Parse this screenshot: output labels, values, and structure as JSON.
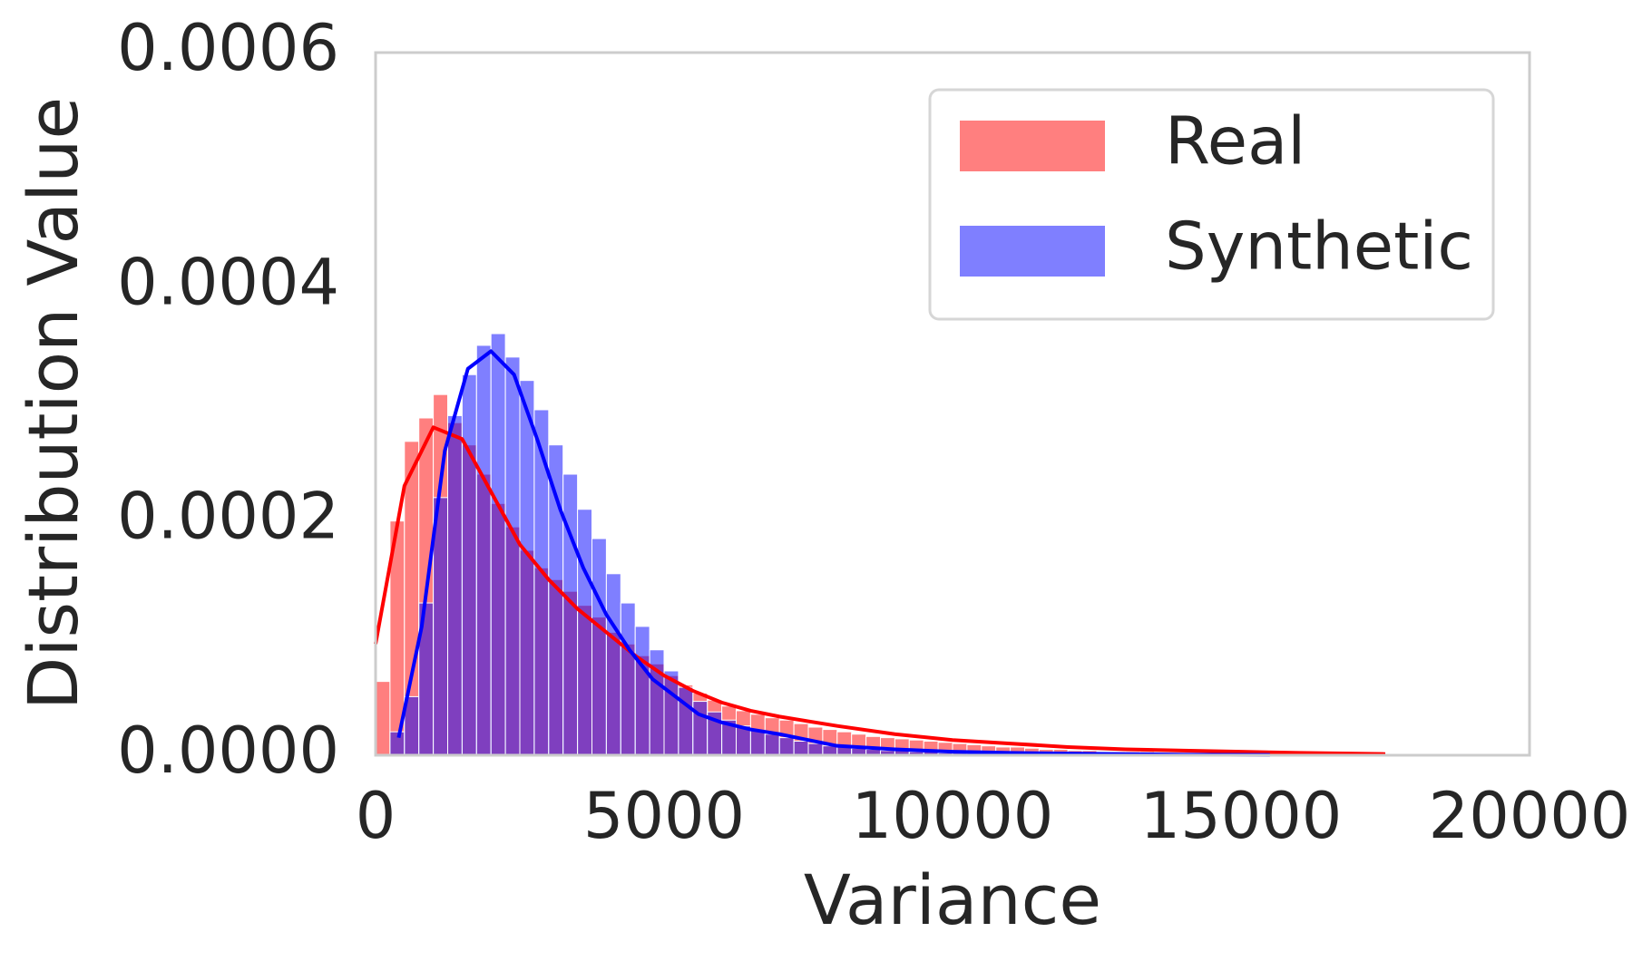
{
  "chart_data": {
    "type": "histogram",
    "xlabel": "Variance",
    "ylabel": "Distribution Value",
    "xlim": [
      0,
      20000
    ],
    "xticks": [
      0,
      5000,
      10000,
      15000,
      20000
    ],
    "ylim": [
      0,
      0.0006
    ],
    "yticks": [
      {
        "value": 0,
        "label": "0.0000"
      },
      0.0002,
      0.0004,
      0.0006
    ],
    "grid": false,
    "legend": "upper right",
    "series": [
      {
        "name": "Real",
        "color": "#ff0000",
        "opacity": 0.5,
        "bins": [
          0,
          250,
          500,
          750,
          1000,
          1250,
          1500,
          1750,
          2000,
          2250,
          2500,
          2750,
          3000,
          3250,
          3500,
          3750,
          4000,
          4250,
          4500,
          4750,
          5000,
          5250,
          5500,
          5750,
          6000,
          6250,
          6500,
          6750,
          7000,
          7250,
          7500,
          7750,
          8000,
          8250,
          8500,
          8750,
          9000,
          9250,
          9500,
          9750,
          10000,
          10250,
          10500,
          10750,
          11000,
          11250,
          11500,
          11750,
          12000,
          12250,
          12500,
          12750,
          13000,
          13250,
          13500,
          13750,
          14000,
          14250,
          14500,
          14750,
          15000,
          15250,
          15500,
          15750,
          16000,
          16250,
          16500,
          16750,
          17000,
          17250,
          17500
        ],
        "values": [
          6.3e-05,
          0.0002,
          0.000268,
          0.000288,
          0.000308,
          0.000284,
          0.000265,
          0.00024,
          0.000215,
          0.000195,
          0.000175,
          0.00016,
          0.00015,
          0.00014,
          0.000128,
          0.000118,
          0.000105,
          9.5e-05,
          8.5e-05,
          7.8e-05,
          6.8e-05,
          6e-05,
          5.3e-05,
          4.7e-05,
          4.2e-05,
          3.8e-05,
          3.5e-05,
          3.2e-05,
          3e-05,
          2.7e-05,
          2.4e-05,
          2.2e-05,
          2e-05,
          1.8e-05,
          1.6e-05,
          1.5e-05,
          1.4e-05,
          1.3e-05,
          1.2e-05,
          1.1e-05,
          1e-05,
          9e-06,
          8e-06,
          7e-06,
          7e-06,
          6e-06,
          5e-06,
          5e-06,
          4e-06,
          4e-06,
          3e-06,
          3e-06,
          3e-06,
          3e-06,
          2e-06,
          2e-06,
          2e-06,
          2e-06,
          2e-06,
          2e-06,
          1e-06,
          1e-06,
          1e-06,
          1e-06,
          1e-06,
          1e-06,
          1e-06,
          1e-06,
          1e-06,
          1e-06
        ],
        "kde": {
          "x": [
            0,
            500,
            1000,
            1500,
            2000,
            2500,
            3000,
            3500,
            4000,
            4500,
            5000,
            5500,
            6000,
            6500,
            7000,
            8000,
            9000,
            10000,
            11000,
            12000,
            13000,
            14000,
            15000,
            16000,
            17500
          ],
          "values": [
            9.5e-05,
            0.00023,
            0.00028,
            0.00027,
            0.000225,
            0.00018,
            0.00015,
            0.000125,
            0.000105,
            8.5e-05,
            6.8e-05,
            5.5e-05,
            4.5e-05,
            3.8e-05,
            3.3e-05,
            2.5e-05,
            1.8e-05,
            1.3e-05,
            1e-05,
            7e-06,
            5e-06,
            4e-06,
            3e-06,
            2e-06,
            1e-06
          ]
        }
      },
      {
        "name": "Synthetic",
        "color": "#0000ff",
        "opacity": 0.5,
        "bins": [
          250,
          500,
          750,
          1000,
          1250,
          1500,
          1750,
          2000,
          2250,
          2500,
          2750,
          3000,
          3250,
          3500,
          3750,
          4000,
          4250,
          4500,
          4750,
          5000,
          5250,
          5500,
          5750,
          6000,
          6250,
          6500,
          6750,
          7000,
          7250,
          7500,
          7750,
          8000,
          8250,
          8500,
          8750,
          9000,
          9250,
          9500,
          9750,
          10000,
          10250,
          10500,
          10750,
          11000,
          11250,
          11500,
          11750,
          12000,
          12250,
          12500,
          12750,
          13000,
          13250,
          13500,
          13750,
          14000,
          14250,
          14500,
          14750,
          15000,
          15250,
          15500
        ],
        "values": [
          2e-05,
          5e-05,
          0.00013,
          0.00022,
          0.00029,
          0.000325,
          0.00035,
          0.00036,
          0.00034,
          0.00032,
          0.000295,
          0.000265,
          0.00024,
          0.00021,
          0.000185,
          0.000155,
          0.00013,
          0.00011,
          9e-05,
          7.2e-05,
          5.8e-05,
          4.6e-05,
          3.7e-05,
          3e-05,
          2.5e-05,
          2.1e-05,
          1.8e-05,
          1.5e-05,
          1.2e-05,
          1e-05,
          8e-06,
          7e-06,
          6e-06,
          5e-06,
          4e-06,
          4e-06,
          3e-06,
          3e-06,
          2e-06,
          2e-06,
          2e-06,
          2e-06,
          1e-06,
          1e-06,
          1e-06,
          1e-06,
          1e-06,
          1e-06,
          1e-06,
          1e-06,
          1e-06,
          1e-06,
          1e-06,
          1e-06,
          1e-06,
          1e-06,
          1e-06,
          1e-06,
          1e-06,
          1e-06,
          1e-06
        ],
        "kde": {
          "x": [
            400,
            800,
            1200,
            1600,
            2000,
            2400,
            2800,
            3200,
            3600,
            4000,
            4400,
            4800,
            5200,
            5600,
            6000,
            6500,
            7000,
            7500,
            8000,
            9000,
            10000,
            11000,
            12000,
            13000,
            14000,
            15500
          ],
          "values": [
            1.5e-05,
            0.00011,
            0.00026,
            0.00033,
            0.000345,
            0.000325,
            0.00027,
            0.00021,
            0.00016,
            0.00012,
            9e-05,
            6.5e-05,
            5e-05,
            3.5e-05,
            2.8e-05,
            2.2e-05,
            1.8e-05,
            1.3e-05,
            8e-06,
            5e-06,
            3e-06,
            2e-06,
            1.5e-06,
            1e-06,
            5e-07,
            3e-07
          ]
        }
      }
    ]
  }
}
